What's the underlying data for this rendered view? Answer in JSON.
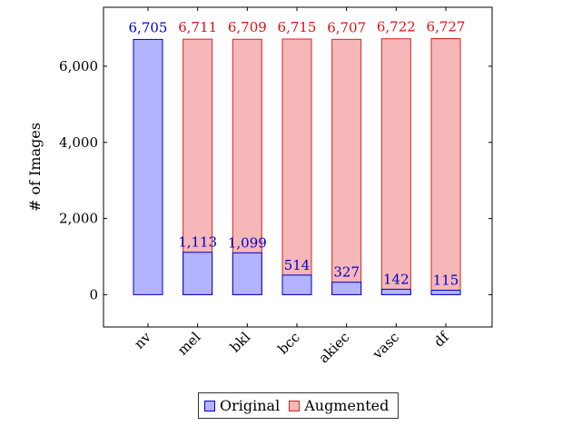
{
  "chart_data": {
    "type": "bar",
    "categories": [
      "nv",
      "mel",
      "bkl",
      "bcc",
      "akiec",
      "vasc",
      "df"
    ],
    "series": [
      {
        "name": "Original",
        "values": [
          6705,
          1113,
          1099,
          514,
          327,
          142,
          115
        ],
        "color": "#b3b3ff",
        "stroke": "#0000cc",
        "label_color": "#0000cc"
      },
      {
        "name": "Augmented",
        "values": [
          6705,
          6711,
          6709,
          6715,
          6707,
          6722,
          6727
        ],
        "color": "#f5b7b7",
        "stroke": "#dd2222",
        "label_color": "#dd1111"
      }
    ],
    "data_labels": [
      {
        "text": "6,705",
        "value": 6705,
        "series": "Original"
      },
      {
        "text": "6,711",
        "value": 6711,
        "series": "Augmented"
      },
      {
        "text": "6,709",
        "value": 6709,
        "series": "Augmented"
      },
      {
        "text": "6,715",
        "value": 6715,
        "series": "Augmented"
      },
      {
        "text": "6,707",
        "value": 6707,
        "series": "Augmented"
      },
      {
        "text": "6,722",
        "value": 6722,
        "series": "Augmented"
      },
      {
        "text": "6,727",
        "value": 6727,
        "series": "Augmented"
      }
    ],
    "inner_labels": [
      "",
      "1,113",
      "1,099",
      "514",
      "327",
      "142",
      "115"
    ],
    "ylabel": "# of Images",
    "xlabel": "",
    "yticks": [
      0,
      2000,
      4000,
      6000
    ],
    "ytick_labels": [
      "0",
      "2,000",
      "4,000",
      "6,000"
    ],
    "ylim": [
      -850,
      7550
    ],
    "grid": false,
    "legend_position": "bottom-center"
  },
  "legend": {
    "original_label": "Original",
    "augmented_label": "Augmented"
  }
}
